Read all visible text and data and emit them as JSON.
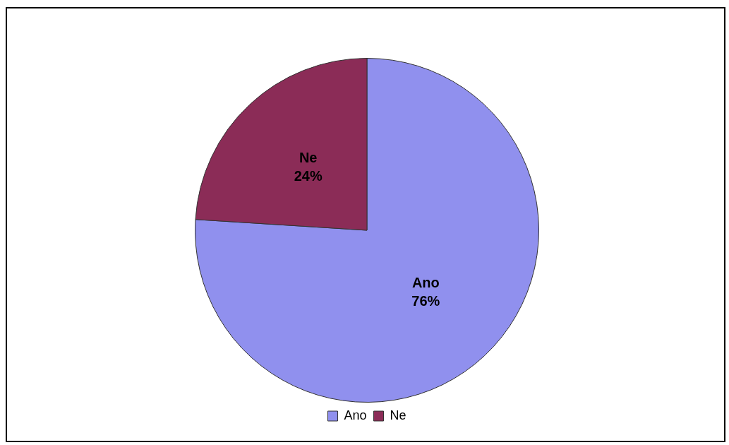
{
  "chart_data": {
    "type": "pie",
    "categories": [
      "Ano",
      "Ne"
    ],
    "values": [
      76,
      24
    ],
    "colors": [
      "#9090ee",
      "#8b2c57"
    ],
    "value_labels": [
      "76%",
      "24%"
    ],
    "legend": "bottom"
  }
}
